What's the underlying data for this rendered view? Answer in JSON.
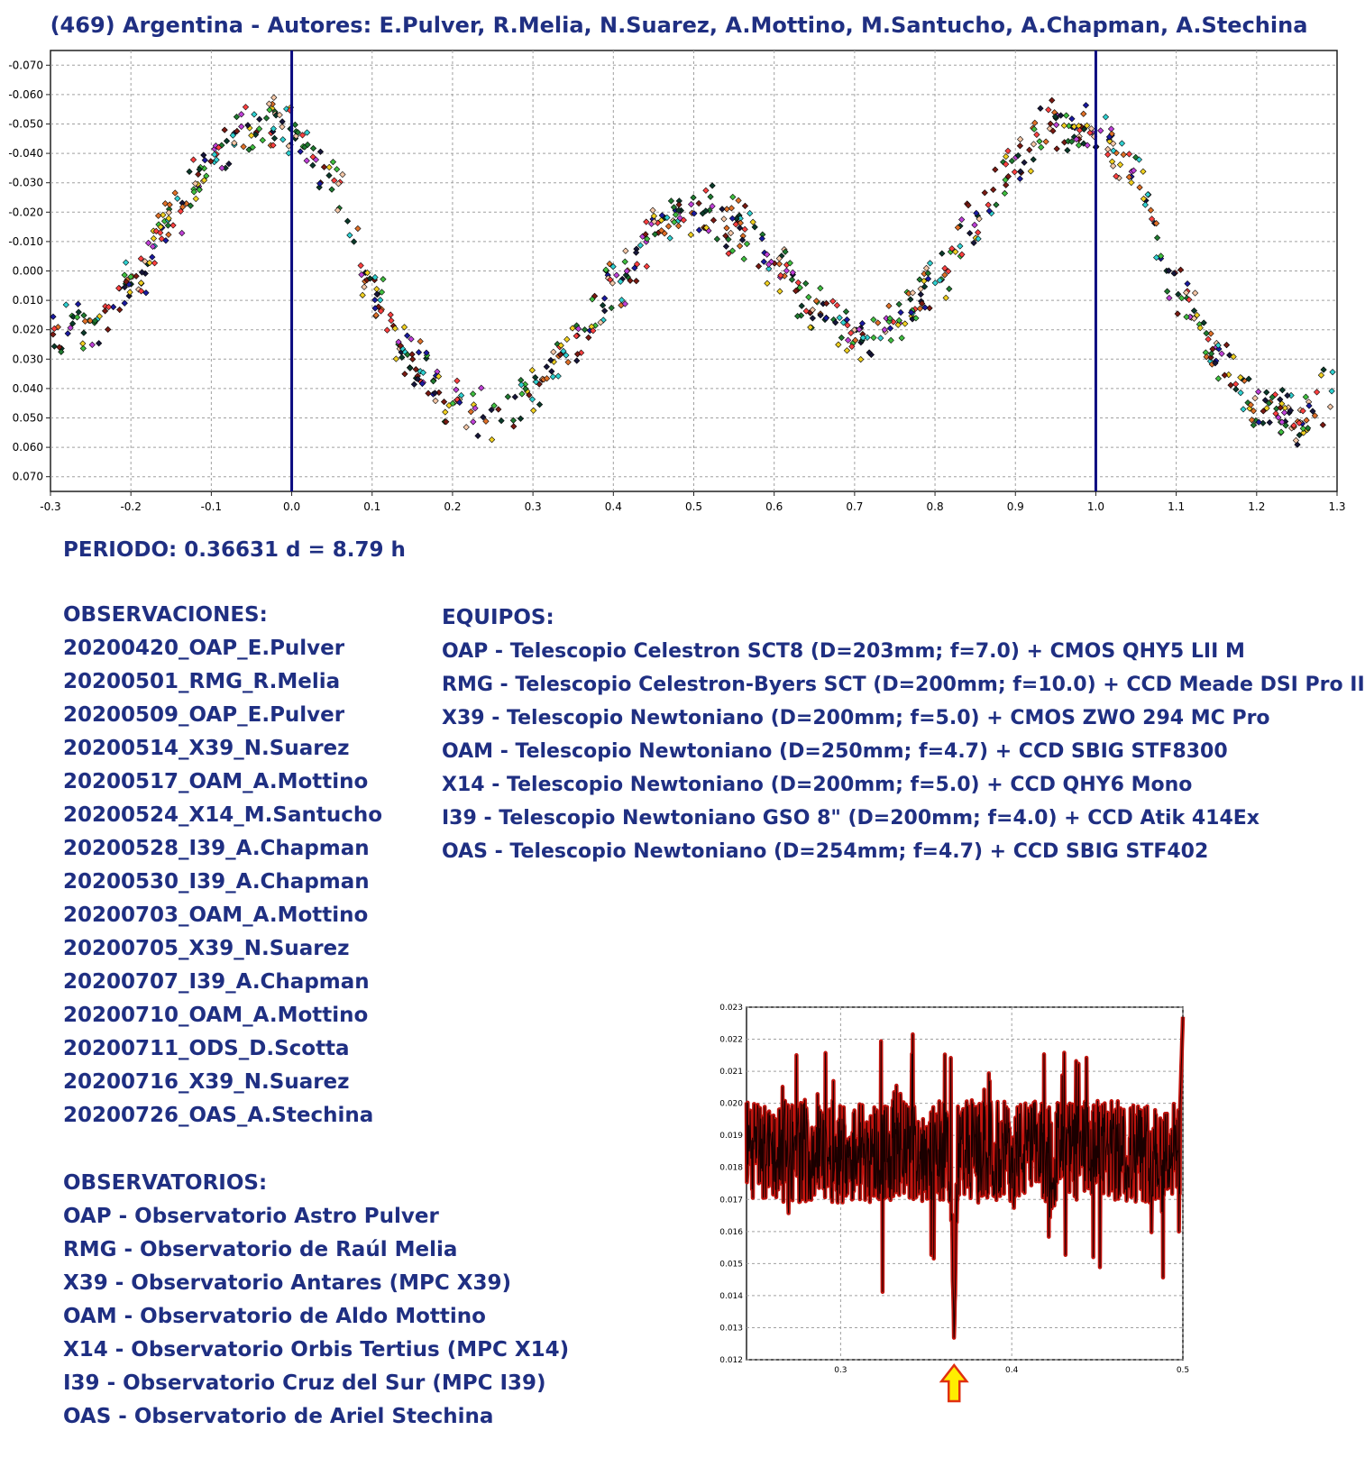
{
  "title": "(469) Argentina - Autores: E.Pulver, R.Melia, N.Suarez, A.Mottino, M.Santucho, A.Chapman, A.Stechina",
  "periodo": "PERIODO: 0.36631 d = 8.79 h",
  "observaciones": {
    "heading": "OBSERVACIONES:",
    "items": [
      "20200420_OAP_E.Pulver",
      "20200501_RMG_R.Melia",
      "20200509_OAP_E.Pulver",
      "20200514_X39_N.Suarez",
      "20200517_OAM_A.Mottino",
      "20200524_X14_M.Santucho",
      "20200528_I39_A.Chapman",
      "20200530_I39_A.Chapman",
      "20200703_OAM_A.Mottino",
      "20200705_X39_N.Suarez",
      "20200707_I39_A.Chapman",
      "20200710_OAM_A.Mottino",
      "20200711_ODS_D.Scotta",
      "20200716_X39_N.Suarez",
      "20200726_OAS_A.Stechina"
    ]
  },
  "equipos": {
    "heading": "EQUIPOS:",
    "items": [
      "OAP - Telescopio Celestron SCT8 (D=203mm; f=7.0) + CMOS QHY5 LII M",
      "RMG - Telescopio Celestron-Byers SCT (D=200mm; f=10.0) + CCD Meade DSI Pro II",
      "X39 - Telescopio Newtoniano (D=200mm; f=5.0) + CMOS ZWO 294 MC Pro",
      "OAM - Telescopio Newtoniano (D=250mm; f=4.7) + CCD SBIG STF8300",
      "X14 - Telescopio Newtoniano (D=200mm; f=5.0) + CCD QHY6 Mono",
      "I39 - Telescopio Newtoniano GSO 8\" (D=200mm; f=4.0) + CCD Atik 414Ex",
      "OAS - Telescopio Newtoniano (D=254mm; f=4.7) + CCD SBIG STF402"
    ]
  },
  "observatorios": {
    "heading": "OBSERVATORIOS:",
    "items": [
      "OAP - Observatorio Astro Pulver",
      "RMG - Observatorio de Raúl Melia",
      "X39 - Observatorio Antares (MPC X39)",
      "OAM - Observatorio de Aldo Mottino",
      "X14 - Observatorio Orbis Tertius (MPC X14)",
      "I39 - Observatorio Cruz del Sur (MPC I39)",
      "OAS - Observatorio de Ariel Stechina"
    ]
  },
  "colors": {
    "text": "#1f2f82",
    "phase_lines": "#0a0a80",
    "inset_points": "#c0140e",
    "arrow_fill": "#ffee00",
    "arrow_stroke": "#e03010"
  },
  "chart_data": [
    {
      "type": "scatter",
      "xlim": [
        -0.3,
        1.3
      ],
      "ylim": [
        -0.075,
        0.075
      ],
      "y_inverted": true,
      "grid": true,
      "x_ticks": [
        "-0.3",
        "-0.2",
        "-0.1",
        "0.0",
        "0.1",
        "0.2",
        "0.3",
        "0.4",
        "0.5",
        "0.6",
        "0.7",
        "0.8",
        "0.9",
        "1.0",
        "1.1",
        "1.2",
        "1.3"
      ],
      "y_ticks": [
        "-0.070",
        "-0.060",
        "-0.050",
        "-0.040",
        "-0.030",
        "-0.020",
        "-0.010",
        "0.000",
        "0.010",
        "0.020",
        "0.030",
        "0.040",
        "0.050",
        "0.060",
        "0.070"
      ],
      "vertical_lines": [
        0.0,
        1.0
      ],
      "mean_curve": {
        "x": [
          0.0,
          0.05,
          0.1,
          0.15,
          0.2,
          0.25,
          0.3,
          0.35,
          0.4,
          0.45,
          0.5,
          0.55,
          0.6,
          0.65,
          0.7,
          0.75,
          0.8,
          0.85,
          0.9,
          0.95,
          1.0
        ],
        "y": [
          -0.048,
          -0.032,
          0.005,
          0.03,
          0.045,
          0.05,
          0.04,
          0.025,
          0.005,
          -0.012,
          -0.022,
          -0.015,
          -0.003,
          0.012,
          0.022,
          0.018,
          0.005,
          -0.018,
          -0.038,
          -0.05,
          -0.048
        ]
      },
      "scatter_amplitude": 0.006,
      "marker_colors": [
        "#7a1a12",
        "#e07028",
        "#1a1aa0",
        "#1f7a30",
        "#3fbf3f",
        "#16163a",
        "#2fd1d1",
        "#c040d8",
        "#f5c8a8",
        "#f0d020",
        "#0a3a2a",
        "#ff4040"
      ]
    },
    {
      "type": "line",
      "xlim": [
        0.245,
        0.5
      ],
      "ylim": [
        0.012,
        0.023
      ],
      "grid": true,
      "x_ticks": [
        "0.3",
        "0.4",
        "0.5"
      ],
      "y_ticks": [
        "0.012",
        "0.013",
        "0.014",
        "0.015",
        "0.016",
        "0.017",
        "0.018",
        "0.019",
        "0.020",
        "0.021",
        "0.022",
        "0.023"
      ],
      "mean_level": 0.0185,
      "noise_amplitude": 0.0016,
      "minimum": {
        "x": 0.3663,
        "y": 0.0125
      },
      "right_edge_peak": 0.0227
    }
  ]
}
